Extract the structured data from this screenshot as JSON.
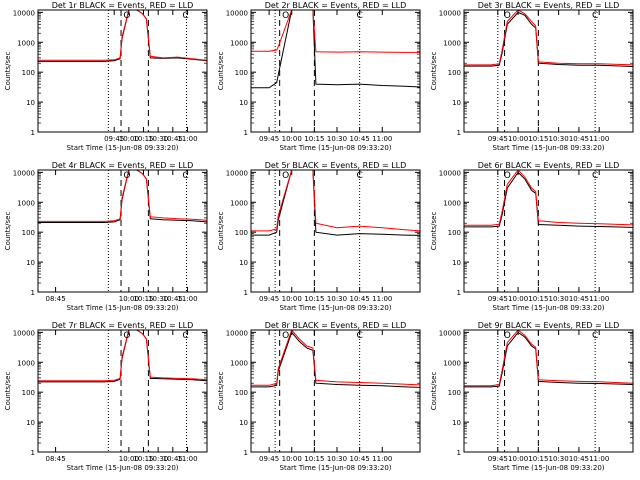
{
  "figure": {
    "xlabel": "Start Time (15-Jun-08 09:33:20)",
    "ylabel": "Counts/sec",
    "colors": {
      "events": "#000000",
      "lld": "#ff0000"
    }
  },
  "chart_data": [
    {
      "type": "line",
      "title": "Det 1r BLACK = Events, RED = LLD",
      "xlabel": "Start Time (15-Jun-08 09:33:20)",
      "ylabel": "Counts/sec",
      "xlim": [
        "08:27",
        "11:20"
      ],
      "yscale": "log",
      "ylim": [
        1,
        12000
      ],
      "xticks": [
        "09:45",
        "10:00",
        "10:15",
        "10:30",
        "10:45",
        "11:00"
      ],
      "yticks": [
        1,
        10,
        100,
        1000,
        10000
      ],
      "vlines": {
        "dotted": [
          "09:39",
          "10:59"
        ],
        "dashed": [
          "09:52",
          "10:20"
        ]
      },
      "markers": {
        "O": "09:58",
        "C": "10:58"
      },
      "series": [
        {
          "name": "Events",
          "color": "#000000",
          "x": [
            "08:27",
            "09:35",
            "09:45",
            "09:51",
            "09:53",
            "10:00",
            "10:08",
            "10:14",
            "10:18",
            "10:22",
            "10:35",
            "10:50",
            "11:05",
            "11:20"
          ],
          "values": [
            230,
            230,
            240,
            280,
            1300,
            12000,
            12000,
            9000,
            6000,
            300,
            290,
            300,
            270,
            240
          ]
        },
        {
          "name": "LLD",
          "color": "#ff0000",
          "x": [
            "08:27",
            "09:35",
            "09:45",
            "09:51",
            "09:53",
            "10:00",
            "10:08",
            "10:14",
            "10:18",
            "10:22",
            "10:35",
            "10:50",
            "11:05",
            "11:20"
          ],
          "values": [
            250,
            250,
            260,
            300,
            1500,
            12000,
            12000,
            9000,
            6000,
            340,
            300,
            320,
            280,
            250
          ]
        }
      ]
    },
    {
      "type": "line",
      "title": "Det 2r BLACK = Events, RED = LLD",
      "xlabel": "Start Time (15-Jun-08 09:33:20)",
      "ylabel": "Counts/sec",
      "xlim": [
        "09:33",
        "11:25"
      ],
      "yscale": "log",
      "ylim": [
        1,
        12000
      ],
      "xticks": [
        "09:45",
        "10:00",
        "10:15",
        "10:30",
        "10:45",
        "11:00"
      ],
      "yticks": [
        1,
        10,
        100,
        1000,
        10000
      ],
      "vlines": {
        "dotted": [
          "09:49",
          "10:45"
        ],
        "dashed": [
          "09:52",
          "10:15"
        ]
      },
      "markers": {
        "O": "09:56",
        "C": "10:45"
      },
      "series": [
        {
          "name": "Events",
          "color": "#000000",
          "x": [
            "09:33",
            "09:45",
            "09:50",
            "09:51",
            "10:00",
            "10:10",
            "10:14",
            "10:16",
            "10:30",
            "10:45",
            "11:00",
            "11:15",
            "11:25"
          ],
          "values": [
            30,
            30,
            45,
            80,
            12000,
            12000,
            12000,
            40,
            38,
            40,
            36,
            34,
            32
          ]
        },
        {
          "name": "LLD",
          "color": "#ff0000",
          "x": [
            "09:33",
            "09:45",
            "09:50",
            "09:51",
            "10:00",
            "10:10",
            "10:14",
            "10:16",
            "10:30",
            "10:45",
            "11:00",
            "11:15",
            "11:25"
          ],
          "values": [
            500,
            500,
            550,
            700,
            12000,
            12000,
            12000,
            480,
            470,
            480,
            470,
            460,
            460
          ]
        }
      ]
    },
    {
      "type": "line",
      "title": "Det 3r BLACK = Events, RED = LLD",
      "xlabel": "Start Time (15-Jun-08 09:33:20)",
      "ylabel": "Counts/sec",
      "xlim": [
        "09:20",
        "11:25"
      ],
      "yscale": "log",
      "ylim": [
        1,
        12000
      ],
      "xticks": [
        "09:45",
        "10:00",
        "10:15",
        "10:30",
        "10:45",
        "11:00"
      ],
      "yticks": [
        1,
        10,
        100,
        1000,
        10000
      ],
      "vlines": {
        "dotted": [
          "09:45",
          "10:57"
        ],
        "dashed": [
          "09:50",
          "10:15"
        ]
      },
      "markers": {
        "O": "09:52",
        "C": "10:57"
      },
      "series": [
        {
          "name": "Events",
          "color": "#000000",
          "x": [
            "09:20",
            "09:40",
            "09:46",
            "09:48",
            "09:52",
            "10:00",
            "10:05",
            "10:10",
            "10:13",
            "10:15",
            "10:30",
            "10:45",
            "11:00",
            "11:25"
          ],
          "values": [
            160,
            160,
            170,
            400,
            4000,
            10000,
            8000,
            4000,
            3000,
            200,
            180,
            170,
            170,
            155
          ]
        },
        {
          "name": "LLD",
          "color": "#ff0000",
          "x": [
            "09:20",
            "09:40",
            "09:46",
            "09:48",
            "09:52",
            "10:00",
            "10:05",
            "10:10",
            "10:13",
            "10:15",
            "10:30",
            "10:45",
            "11:00",
            "11:25"
          ],
          "values": [
            175,
            175,
            190,
            500,
            5000,
            12000,
            9000,
            5000,
            3500,
            220,
            200,
            190,
            190,
            175
          ]
        }
      ]
    },
    {
      "type": "line",
      "title": "Det 4r BLACK = Events, RED = LLD",
      "xlabel": "Start Time (15-Jun-08 09:33:20)",
      "ylabel": "Counts/sec",
      "xlim": [
        "08:27",
        "11:20"
      ],
      "yscale": "log",
      "ylim": [
        1,
        12000
      ],
      "xticks": [
        "08:45",
        "10:00",
        "10:15",
        "10:30",
        "10:45",
        "11:00"
      ],
      "yticks": [
        1,
        10,
        100,
        1000,
        10000
      ],
      "vlines": {
        "dotted": [
          "09:39",
          "10:59"
        ],
        "dashed": [
          "09:52",
          "10:20"
        ]
      },
      "markers": {
        "O": "09:58",
        "C": "10:58"
      },
      "series": [
        {
          "name": "Events",
          "color": "#000000",
          "x": [
            "08:27",
            "09:35",
            "09:45",
            "09:51",
            "09:53",
            "10:00",
            "10:08",
            "10:14",
            "10:18",
            "10:22",
            "10:35",
            "10:50",
            "11:05",
            "11:20"
          ],
          "values": [
            210,
            210,
            220,
            260,
            1200,
            12000,
            12000,
            9000,
            6000,
            280,
            260,
            250,
            240,
            220
          ]
        },
        {
          "name": "LLD",
          "color": "#ff0000",
          "x": [
            "08:27",
            "09:35",
            "09:45",
            "09:51",
            "09:53",
            "10:00",
            "10:08",
            "10:14",
            "10:18",
            "10:22",
            "10:35",
            "10:50",
            "11:05",
            "11:20"
          ],
          "values": [
            230,
            230,
            240,
            280,
            1400,
            12000,
            12000,
            9000,
            6000,
            330,
            300,
            280,
            270,
            250
          ]
        }
      ]
    },
    {
      "type": "line",
      "title": "Det 5r BLACK = Events, RED = LLD",
      "xlabel": "Start Time (15-Jun-08 09:33:20)",
      "ylabel": "Counts/sec",
      "xlim": [
        "09:33",
        "11:25"
      ],
      "yscale": "log",
      "ylim": [
        1,
        12000
      ],
      "xticks": [
        "09:45",
        "10:00",
        "10:15",
        "10:30",
        "10:45",
        "11:00"
      ],
      "yticks": [
        1,
        10,
        100,
        1000,
        10000
      ],
      "vlines": {
        "dotted": [
          "09:49",
          "10:45"
        ],
        "dashed": [
          "09:52",
          "10:15"
        ]
      },
      "markers": {
        "O": "09:56",
        "C": "10:45"
      },
      "series": [
        {
          "name": "Events",
          "color": "#000000",
          "x": [
            "09:33",
            "09:45",
            "09:50",
            "09:51",
            "10:00",
            "10:10",
            "10:14",
            "10:16",
            "10:30",
            "10:45",
            "11:00",
            "11:15",
            "11:25"
          ],
          "values": [
            80,
            80,
            100,
            250,
            12000,
            12000,
            12000,
            100,
            80,
            90,
            85,
            80,
            78
          ]
        },
        {
          "name": "LLD",
          "color": "#ff0000",
          "x": [
            "09:33",
            "09:45",
            "09:50",
            "09:51",
            "10:00",
            "10:10",
            "10:14",
            "10:16",
            "10:30",
            "10:45",
            "11:00",
            "11:15",
            "11:25"
          ],
          "values": [
            110,
            110,
            130,
            350,
            12000,
            12000,
            12000,
            200,
            140,
            160,
            140,
            120,
            110
          ]
        }
      ]
    },
    {
      "type": "line",
      "title": "Det 6r BLACK = Events, RED = LLD",
      "xlabel": "Start Time (15-Jun-08 09:33:20)",
      "ylabel": "Counts/sec",
      "xlim": [
        "09:20",
        "11:25"
      ],
      "yscale": "log",
      "ylim": [
        1,
        12000
      ],
      "xticks": [
        "09:45",
        "10:00",
        "10:15",
        "10:30",
        "10:45",
        "11:00"
      ],
      "yticks": [
        1,
        10,
        100,
        1000,
        10000
      ],
      "vlines": {
        "dotted": [
          "09:45",
          "10:57"
        ],
        "dashed": [
          "09:50",
          "10:15"
        ]
      },
      "markers": {
        "O": "09:52",
        "C": "10:57"
      },
      "series": [
        {
          "name": "Events",
          "color": "#000000",
          "x": [
            "09:20",
            "09:40",
            "09:46",
            "09:48",
            "09:52",
            "10:00",
            "10:05",
            "10:10",
            "10:13",
            "10:15",
            "10:30",
            "10:45",
            "11:00",
            "11:25"
          ],
          "values": [
            150,
            150,
            160,
            350,
            3000,
            10000,
            6000,
            2500,
            2000,
            180,
            170,
            160,
            155,
            145
          ]
        },
        {
          "name": "LLD",
          "color": "#ff0000",
          "x": [
            "09:20",
            "09:40",
            "09:46",
            "09:48",
            "09:52",
            "10:00",
            "10:05",
            "10:10",
            "10:13",
            "10:15",
            "10:30",
            "10:45",
            "11:00",
            "11:25"
          ],
          "values": [
            170,
            170,
            185,
            450,
            4000,
            12000,
            7000,
            3000,
            2300,
            240,
            210,
            200,
            190,
            175
          ]
        }
      ]
    },
    {
      "type": "line",
      "title": "Det 7r BLACK = Events, RED = LLD",
      "xlabel": "Start Time (15-Jun-08 09:33:20)",
      "ylabel": "Counts/sec",
      "xlim": [
        "08:27",
        "11:20"
      ],
      "yscale": "log",
      "ylim": [
        1,
        12000
      ],
      "xticks": [
        "08:45",
        "10:00",
        "10:15",
        "10:30",
        "10:45",
        "11:00"
      ],
      "yticks": [
        1,
        10,
        100,
        1000,
        10000
      ],
      "vlines": {
        "dotted": [
          "09:39",
          "10:59"
        ],
        "dashed": [
          "09:52",
          "10:20"
        ]
      },
      "markers": {
        "O": "09:58",
        "C": "10:58"
      },
      "series": [
        {
          "name": "Events",
          "color": "#000000",
          "x": [
            "08:27",
            "09:35",
            "09:45",
            "09:51",
            "09:53",
            "10:00",
            "10:08",
            "10:14",
            "10:18",
            "10:22",
            "10:35",
            "10:50",
            "11:05",
            "11:20"
          ],
          "values": [
            220,
            220,
            230,
            270,
            1300,
            12000,
            12000,
            9000,
            6000,
            290,
            280,
            270,
            260,
            240
          ]
        },
        {
          "name": "LLD",
          "color": "#ff0000",
          "x": [
            "08:27",
            "09:35",
            "09:45",
            "09:51",
            "09:53",
            "10:00",
            "10:08",
            "10:14",
            "10:18",
            "10:22",
            "10:35",
            "10:50",
            "11:05",
            "11:20"
          ],
          "values": [
            240,
            240,
            250,
            290,
            1500,
            12000,
            12000,
            9000,
            6000,
            320,
            300,
            290,
            280,
            260
          ]
        }
      ]
    },
    {
      "type": "line",
      "title": "Det 8r BLACK = Events, RED = LLD",
      "xlabel": "Start Time (15-Jun-08 09:33:20)",
      "ylabel": "Counts/sec",
      "xlim": [
        "09:33",
        "11:25"
      ],
      "yscale": "log",
      "ylim": [
        1,
        12000
      ],
      "xticks": [
        "09:45",
        "10:00",
        "10:15",
        "10:30",
        "10:45",
        "11:00"
      ],
      "yticks": [
        1,
        10,
        100,
        1000,
        10000
      ],
      "vlines": {
        "dotted": [
          "09:49",
          "10:45"
        ],
        "dashed": [
          "09:52",
          "10:15"
        ]
      },
      "markers": {
        "O": "09:56",
        "C": "10:45"
      },
      "series": [
        {
          "name": "Events",
          "color": "#000000",
          "x": [
            "09:33",
            "09:45",
            "09:50",
            "09:51",
            "10:00",
            "10:05",
            "10:10",
            "10:14",
            "10:16",
            "10:30",
            "10:45",
            "11:00",
            "11:15",
            "11:25"
          ],
          "values": [
            150,
            150,
            170,
            500,
            10000,
            5000,
            3000,
            2500,
            200,
            180,
            170,
            165,
            150,
            145
          ]
        },
        {
          "name": "LLD",
          "color": "#ff0000",
          "x": [
            "09:33",
            "09:45",
            "09:50",
            "09:51",
            "10:00",
            "10:05",
            "10:10",
            "10:14",
            "10:16",
            "10:30",
            "10:45",
            "11:00",
            "11:25"
          ],
          "values": [
            170,
            170,
            200,
            600,
            12000,
            6000,
            3500,
            3000,
            250,
            220,
            210,
            200,
            175
          ]
        }
      ]
    },
    {
      "type": "line",
      "title": "Det 9r BLACK = Events, RED = LLD",
      "xlabel": "Start Time (15-Jun-08 09:33:20)",
      "ylabel": "Counts/sec",
      "xlim": [
        "09:20",
        "11:25"
      ],
      "yscale": "log",
      "ylim": [
        1,
        12000
      ],
      "xticks": [
        "09:45",
        "10:00",
        "10:15",
        "10:30",
        "10:45",
        "11:00"
      ],
      "yticks": [
        1,
        10,
        100,
        1000,
        10000
      ],
      "vlines": {
        "dotted": [
          "09:45",
          "10:57"
        ],
        "dashed": [
          "09:50",
          "10:15"
        ]
      },
      "markers": {
        "O": "09:52",
        "C": "10:57"
      },
      "series": [
        {
          "name": "Events",
          "color": "#000000",
          "x": [
            "09:20",
            "09:40",
            "09:46",
            "09:48",
            "09:52",
            "10:00",
            "10:05",
            "10:10",
            "10:13",
            "10:15",
            "10:30",
            "10:45",
            "11:00",
            "11:25"
          ],
          "values": [
            150,
            150,
            160,
            400,
            3500,
            10000,
            7000,
            3500,
            2800,
            230,
            210,
            200,
            195,
            180
          ]
        },
        {
          "name": "LLD",
          "color": "#ff0000",
          "x": [
            "09:20",
            "09:40",
            "09:46",
            "09:48",
            "09:52",
            "10:00",
            "10:05",
            "10:10",
            "10:13",
            "10:15",
            "10:30",
            "10:45",
            "11:00",
            "11:25"
          ],
          "values": [
            165,
            165,
            180,
            500,
            4500,
            12000,
            8000,
            4000,
            3200,
            260,
            240,
            230,
            225,
            200
          ]
        }
      ]
    }
  ]
}
